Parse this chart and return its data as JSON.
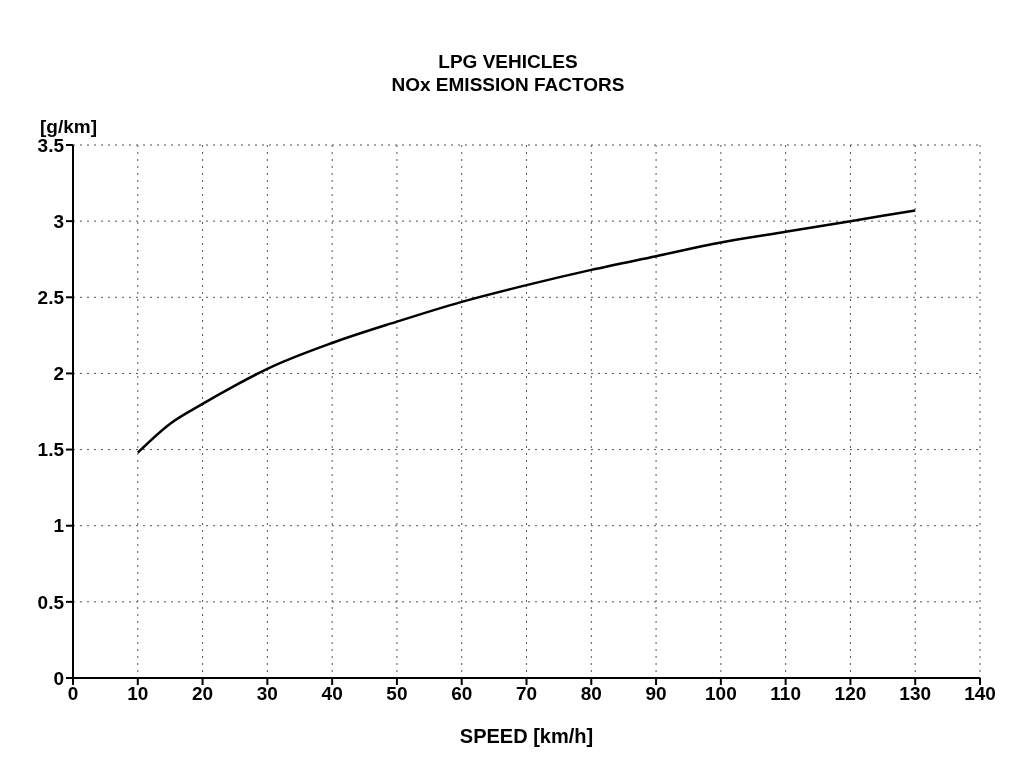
{
  "chart_data": {
    "type": "line",
    "title": "LPG VEHICLES",
    "subtitle": "NOx EMISSION FACTORS",
    "xlabel": "SPEED [km/h]",
    "ylabel": "[g/km]",
    "x": [
      10,
      15,
      20,
      25,
      30,
      40,
      50,
      60,
      70,
      80,
      90,
      100,
      110,
      120,
      130
    ],
    "series": [
      {
        "color": "#000000",
        "values": [
          1.48,
          1.67,
          1.8,
          1.92,
          2.03,
          2.2,
          2.34,
          2.47,
          2.58,
          2.68,
          2.77,
          2.86,
          2.93,
          3.0,
          3.07
        ]
      }
    ],
    "xlim": [
      0,
      140
    ],
    "xticks": [
      0,
      10,
      20,
      30,
      40,
      50,
      60,
      70,
      80,
      90,
      100,
      110,
      120,
      130,
      140
    ],
    "ylim": [
      0,
      3.5
    ],
    "yticks": [
      0,
      {
        "value": 0.5,
        "label": "0.5"
      },
      1,
      {
        "value": 1.5,
        "label": "1.5"
      },
      2,
      {
        "value": 2.5,
        "label": "2.5"
      },
      3,
      {
        "value": 3.5,
        "label": "3.5"
      }
    ],
    "grid": true,
    "marker": "none",
    "line_style": "solid",
    "legend": false
  }
}
